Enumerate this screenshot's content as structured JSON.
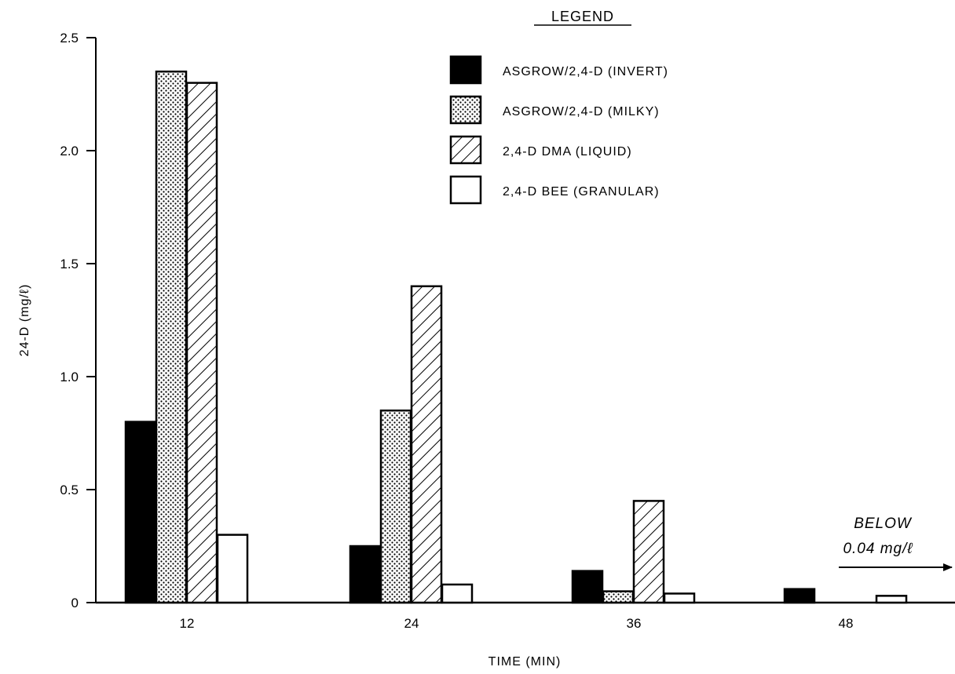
{
  "chart_data": {
    "type": "bar",
    "xlabel": "TIME (MIN)",
    "ylabel": "24-D (mg/ℓ)",
    "ylim": [
      0,
      2.5
    ],
    "yticks": [
      "0",
      "0.5",
      "1.0",
      "1.5",
      "2.0",
      "2.5"
    ],
    "categories": [
      "12",
      "24",
      "36",
      "48"
    ],
    "series": [
      {
        "name": "ASGROW/2,4-D  (INVERT)",
        "pattern": "solid",
        "values": [
          0.8,
          0.25,
          0.14,
          0.06
        ]
      },
      {
        "name": "ASGROW/2,4-D  (MILKY)",
        "pattern": "dots",
        "values": [
          2.35,
          0.85,
          0.05,
          null
        ]
      },
      {
        "name": "2,4-D DMA  (LIQUID)",
        "pattern": "hatch",
        "values": [
          2.3,
          1.4,
          0.45,
          null
        ]
      },
      {
        "name": "2,4-D BEE (GRANULAR)",
        "pattern": "empty",
        "values": [
          0.3,
          0.08,
          0.04,
          0.03
        ]
      }
    ],
    "legend": {
      "title": "LEGEND",
      "placement": "top-right"
    },
    "annotation": {
      "line1": "BELOW",
      "line2": "0.04 mg/ℓ"
    },
    "grid": false
  }
}
